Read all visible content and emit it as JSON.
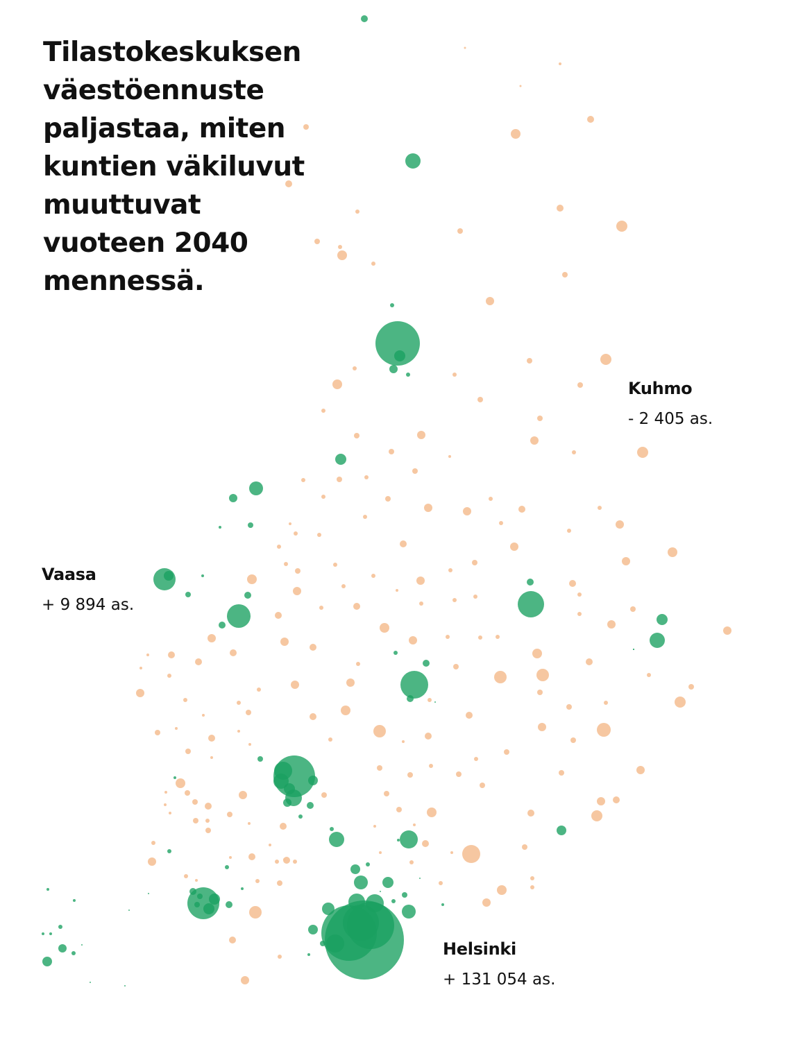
{
  "headline": {
    "lines": [
      "Tilastokeskuksen",
      "väestöennuste",
      "paljastaa, miten",
      "kuntien väkiluvut",
      "muuttuvat",
      "vuoteen 2040",
      "mennessä."
    ]
  },
  "colors": {
    "growth": "#1aa060",
    "decline": "#f5c49c",
    "text": "#111111",
    "background": "#ffffff"
  },
  "callouts": {
    "kuhmo": {
      "city": "Kuhmo",
      "change": "- 2 405 as."
    },
    "vaasa": {
      "city": "Vaasa",
      "change": "+ 9 894 as."
    },
    "helsinki": {
      "city": "Helsinki",
      "change": "+ 131 054 as."
    }
  }
}
